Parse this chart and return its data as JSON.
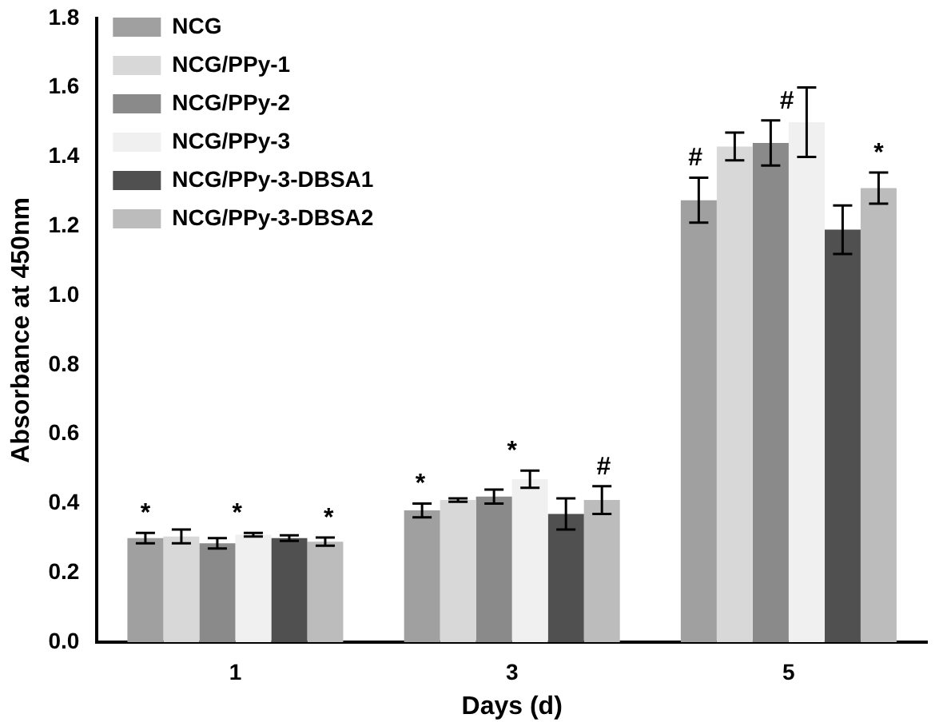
{
  "chart_data": {
    "type": "bar",
    "xlabel": "Days (d)",
    "ylabel": "Absorbance at 450nm",
    "categories": [
      "1",
      "3",
      "5"
    ],
    "series": [
      {
        "name": "NCG",
        "color": "#a0a0a0",
        "values": [
          0.3,
          0.38,
          1.275
        ],
        "errors": [
          0.015,
          0.02,
          0.065
        ]
      },
      {
        "name": "NCG/PPy-1",
        "color": "#d8d8d8",
        "values": [
          0.305,
          0.41,
          1.43
        ],
        "errors": [
          0.02,
          0.005,
          0.04
        ]
      },
      {
        "name": "NCG/PPy-2",
        "color": "#8a8a8a",
        "values": [
          0.285,
          0.42,
          1.44
        ],
        "errors": [
          0.015,
          0.02,
          0.065
        ]
      },
      {
        "name": "NCG/PPy-3",
        "color": "#f0f0f0",
        "values": [
          0.31,
          0.47,
          1.5
        ],
        "errors": [
          0.005,
          0.025,
          0.1
        ]
      },
      {
        "name": "NCG/PPy-3-DBSA1",
        "color": "#505050",
        "values": [
          0.3,
          0.37,
          1.19
        ],
        "errors": [
          0.008,
          0.045,
          0.07
        ]
      },
      {
        "name": "NCG/PPy-3-DBSA2",
        "color": "#bcbcbc",
        "values": [
          0.29,
          0.41,
          1.31
        ],
        "errors": [
          0.012,
          0.04,
          0.045
        ]
      }
    ],
    "ylim": [
      0,
      1.8
    ],
    "yticks": [
      {
        "value": 0,
        "label": "0.0"
      },
      {
        "value": 0.2,
        "label": "0.2"
      },
      {
        "value": 0.4,
        "label": "0.4"
      },
      {
        "value": 0.6,
        "label": "0.6"
      },
      {
        "value": 0.8,
        "label": "0.8"
      },
      {
        "value": 1.0,
        "label": "1.0"
      },
      {
        "value": 1.2,
        "label": "1.2"
      },
      {
        "value": 1.4,
        "label": "1.4"
      },
      {
        "value": 1.6,
        "label": "1.6"
      },
      {
        "value": 1.8,
        "label": "1.8"
      }
    ],
    "annotations": [
      "*",
      "*",
      "*",
      "*",
      "*",
      "#",
      "#",
      "#",
      "*"
    ],
    "legend": "top left",
    "grid": false
  }
}
